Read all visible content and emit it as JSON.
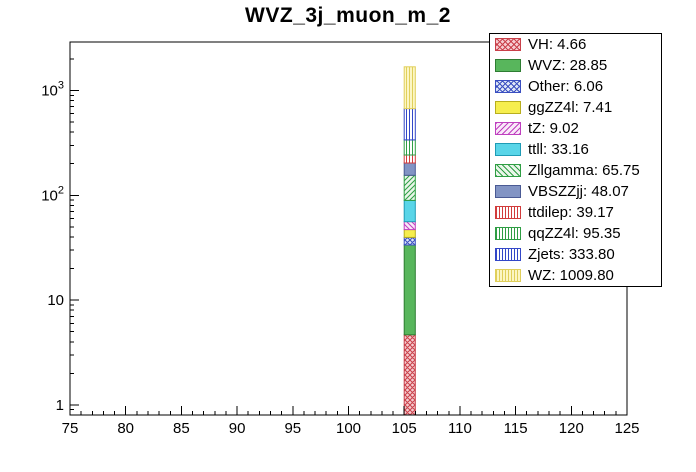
{
  "chart_data": {
    "type": "bar",
    "title": "WVZ_3j_muon_m_2",
    "legend_position": "top-right",
    "grid": false,
    "x_axis": {
      "min": 75,
      "max": 125,
      "major_ticks": [
        75,
        80,
        85,
        90,
        95,
        100,
        105,
        110,
        115,
        120,
        125
      ],
      "minor_step": 1
    },
    "y_axis": {
      "scale": "log",
      "min": 0.8,
      "max": 2900,
      "labels": [
        {
          "value": 1,
          "base": "1"
        },
        {
          "value": 10,
          "base": "10"
        },
        {
          "value": 100,
          "base": "10",
          "exp": "2"
        },
        {
          "value": 1000,
          "base": "10",
          "exp": "3"
        }
      ]
    },
    "bin": {
      "x_low": 105,
      "x_high": 106
    },
    "stack_order": "bottom-to-top",
    "stack_total": 1681.1,
    "series": [
      {
        "name": "VH",
        "value": 4.66,
        "label": "VH: 4.66",
        "pattern": "cross",
        "fill": "#f6ccd0",
        "line": "#c9404a"
      },
      {
        "name": "WVZ",
        "value": 28.85,
        "label": "WVZ: 28.85",
        "pattern": "solid",
        "fill": "#58b65c",
        "line": "#2e7d32"
      },
      {
        "name": "Other",
        "value": 6.06,
        "label": "Other: 6.06",
        "pattern": "cross",
        "fill": "#dde6f6",
        "line": "#3a4fc1"
      },
      {
        "name": "ggZZ4l",
        "value": 7.41,
        "label": "ggZZ4l: 7.41",
        "pattern": "solid",
        "fill": "#f6ee4e",
        "line": "#b8ae1e"
      },
      {
        "name": "tZ",
        "value": 9.02,
        "label": "tZ: 9.02",
        "pattern": "diag2",
        "fill": "#f9e8f9",
        "line": "#bf40bf"
      },
      {
        "name": "ttll",
        "value": 33.16,
        "label": "ttll: 33.16",
        "pattern": "solid",
        "fill": "#59d5e8",
        "line": "#1f9bb5"
      },
      {
        "name": "Zllgamma",
        "value": 65.75,
        "label": "Zllgamma: 65.75",
        "pattern": "diag",
        "fill": "#eaf6ea",
        "line": "#2f9e44"
      },
      {
        "name": "VBSZZjj",
        "value": 48.07,
        "label": "VBSZZjj: 48.07",
        "pattern": "solid",
        "fill": "#8294c4",
        "line": "#4a5a94"
      },
      {
        "name": "ttdilep",
        "value": 39.17,
        "label": "ttdilep: 39.17",
        "pattern": "vlines",
        "fill": "#ffffff",
        "line": "#d23c3c"
      },
      {
        "name": "qqZZ4l",
        "value": 95.35,
        "label": "qqZZ4l: 95.35",
        "pattern": "vlines",
        "fill": "#ffffff",
        "line": "#2f9e44"
      },
      {
        "name": "Zjets",
        "value": 333.8,
        "label": "Zjets: 333.80",
        "pattern": "vlines",
        "fill": "#ffffff",
        "line": "#3347c8"
      },
      {
        "name": "WZ",
        "value": 1009.8,
        "label": "WZ: 1009.80",
        "pattern": "vlines",
        "fill": "#fcf6c4",
        "line": "#e0cf5a"
      }
    ]
  }
}
